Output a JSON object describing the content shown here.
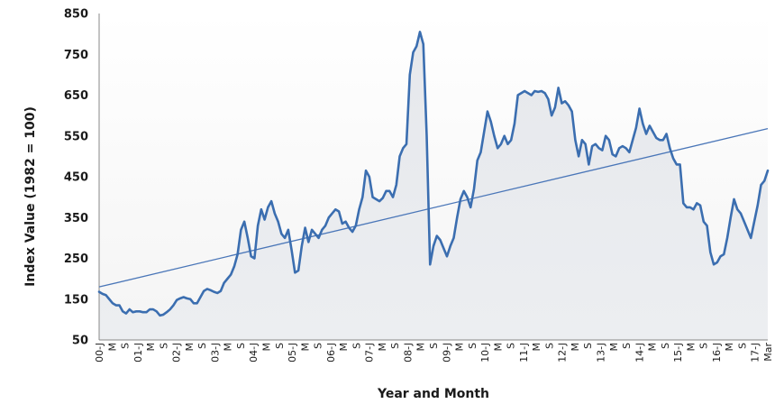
{
  "chart_data": {
    "type": "line",
    "title": "",
    "xlabel": "Year and Month",
    "ylabel": "Index Value (1982 = 100)",
    "ylim": [
      50,
      850
    ],
    "yticks": [
      50,
      150,
      250,
      350,
      450,
      550,
      650,
      750,
      850
    ],
    "grid": false,
    "legend": "none",
    "x_tick_labels": [
      "00-J",
      "M",
      "S",
      "01-J",
      "M",
      "S",
      "02-J",
      "M",
      "S",
      "03-J",
      "M",
      "S",
      "04-J",
      "M",
      "S",
      "05-J",
      "M",
      "S",
      "06-J",
      "M",
      "S",
      "07-J",
      "M",
      "S",
      "08-J",
      "M",
      "S",
      "09-J",
      "M",
      "S",
      "10-J",
      "M",
      "S",
      "11-J",
      "M",
      "S",
      "12-J",
      "M",
      "S",
      "13-J",
      "M",
      "S",
      "14-J",
      "M",
      "S",
      "15-J",
      "M",
      "S",
      "16-J",
      "M",
      "S",
      "17-J",
      "Mar"
    ],
    "series": [
      {
        "name": "Index Value",
        "color": "#3b6eb0",
        "values": [
          168,
          163,
          160,
          150,
          140,
          135,
          135,
          120,
          115,
          125,
          118,
          120,
          120,
          118,
          118,
          125,
          125,
          120,
          110,
          112,
          118,
          125,
          135,
          148,
          152,
          155,
          152,
          150,
          140,
          140,
          155,
          170,
          175,
          172,
          168,
          165,
          170,
          190,
          200,
          210,
          230,
          260,
          320,
          340,
          300,
          255,
          250,
          330,
          370,
          345,
          375,
          390,
          360,
          340,
          310,
          300,
          320,
          270,
          215,
          220,
          280,
          325,
          290,
          320,
          310,
          300,
          320,
          330,
          350,
          360,
          370,
          365,
          335,
          340,
          325,
          315,
          330,
          370,
          400,
          465,
          450,
          400,
          395,
          390,
          398,
          415,
          415,
          400,
          430,
          500,
          520,
          530,
          700,
          755,
          770,
          805,
          775,
          550,
          235,
          280,
          305,
          295,
          275,
          255,
          280,
          300,
          350,
          395,
          415,
          400,
          375,
          420,
          490,
          510,
          560,
          610,
          585,
          550,
          520,
          530,
          550,
          530,
          540,
          580,
          650,
          655,
          660,
          655,
          650,
          660,
          658,
          660,
          655,
          640,
          600,
          620,
          668,
          630,
          635,
          625,
          610,
          540,
          500,
          540,
          530,
          480,
          525,
          530,
          520,
          515,
          550,
          540,
          505,
          500,
          520,
          525,
          520,
          510,
          540,
          570,
          617,
          580,
          555,
          575,
          560,
          545,
          540,
          540,
          555,
          520,
          495,
          480,
          480,
          385,
          375,
          375,
          370,
          385,
          380,
          340,
          330,
          265,
          235,
          240,
          255,
          260,
          300,
          350,
          395,
          370,
          360,
          340,
          320,
          300,
          340,
          380,
          430,
          440,
          465
        ]
      },
      {
        "name": "Trend",
        "color": "#4a76b8",
        "values": [
          180,
          568
        ]
      }
    ]
  }
}
